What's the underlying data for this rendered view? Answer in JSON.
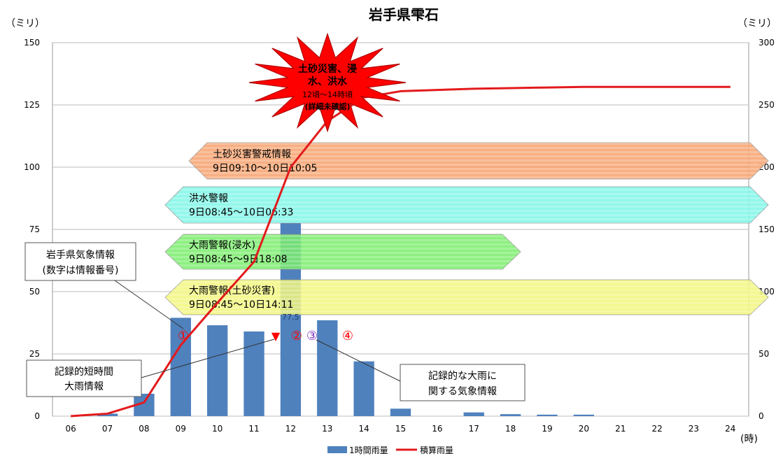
{
  "chart_data": {
    "type": "bar",
    "title": "岩手県雫石",
    "ylabel_left": "（ミリ）",
    "ylabel_right": "（ミリ）",
    "xlabel": "(時)",
    "categories": [
      "06",
      "07",
      "08",
      "09",
      "10",
      "11",
      "12",
      "13",
      "14",
      "15",
      "16",
      "17",
      "18",
      "19",
      "20",
      "21",
      "22",
      "23",
      "24"
    ],
    "ylim_left": [
      0,
      150
    ],
    "ylim_right": [
      0,
      300
    ],
    "yticks_left": [
      0,
      25,
      50,
      75,
      100,
      125,
      150
    ],
    "yticks_right": [
      0,
      50,
      100,
      150,
      200,
      250,
      300
    ],
    "grid": true,
    "series": [
      {
        "name": "1時間雨量",
        "type": "bar",
        "axis": "left",
        "color": "#4f81bd",
        "values": [
          0,
          1,
          9,
          39.5,
          36.5,
          34,
          77.5,
          38.5,
          22,
          3,
          0,
          1.5,
          0.8,
          0.6,
          0.6,
          0,
          0,
          0,
          0
        ]
      },
      {
        "name": "積算雨量",
        "type": "line",
        "axis": "right",
        "color": "#e31a1c",
        "values": [
          0,
          2,
          11,
          57,
          91,
          124,
          200,
          237,
          256,
          261,
          262,
          263,
          263.5,
          264,
          264.5,
          264.5,
          264.5,
          264.5,
          264.5
        ]
      }
    ],
    "data_labels": [
      {
        "category": "12",
        "text": "77.5"
      }
    ],
    "legend": "bottom"
  },
  "warnings": [
    {
      "name": "土砂災害警戒情報",
      "period": "9日09:10〜10日10:05",
      "color": "#f7a26e"
    },
    {
      "name": "洪水警報",
      "period": "9日08:45〜10日06:33",
      "color": "#7ff7e8"
    },
    {
      "name": "大雨警報(浸水)",
      "period": "9日08:45〜9日18:08",
      "color": "#7aee6c"
    },
    {
      "name": "大雨警報(土砂災害)",
      "period": "9日08:45〜10日14:11",
      "color": "#f3f77c"
    }
  ],
  "annotations": {
    "burst_lines": [
      "土砂災害、浸",
      "水、洪水",
      "12頃〜14時頃",
      "(詳細未確認)"
    ],
    "info_box": [
      "岩手県気象情報",
      "(数字は情報番号)"
    ],
    "short_rain_box": [
      "記録的短時間",
      "大雨情報"
    ],
    "record_rain_box": [
      "記録的な大雨に",
      "関する気象情報"
    ],
    "markers": [
      "①",
      "②",
      "③",
      "④"
    ],
    "triangle": "▼"
  }
}
